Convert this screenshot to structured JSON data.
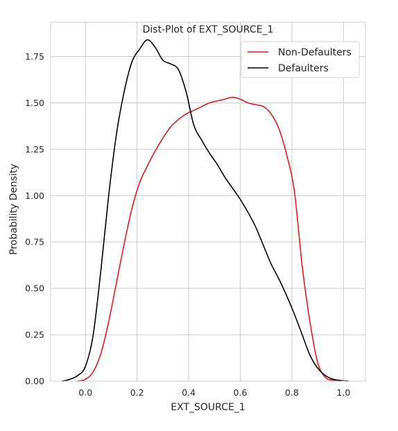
{
  "chart_data": {
    "type": "line",
    "title": "Dist-Plot of EXT_SOURCE_1",
    "xlabel": "EXT_SOURCE_1",
    "ylabel": "Probability Density",
    "xlim": [
      -0.135,
      1.085
    ],
    "ylim": [
      0,
      1.935
    ],
    "xticks": [
      0.0,
      0.2,
      0.4,
      0.6,
      0.8,
      1.0
    ],
    "xtick_labels": [
      "0.0",
      "0.2",
      "0.4",
      "0.6",
      "0.8",
      "1.0"
    ],
    "yticks": [
      0.0,
      0.25,
      0.5,
      0.75,
      1.0,
      1.25,
      1.5,
      1.75
    ],
    "ytick_labels": [
      "0.00",
      "0.25",
      "0.50",
      "0.75",
      "1.00",
      "1.25",
      "1.50",
      "1.75"
    ],
    "grid": true,
    "legend": "top-right",
    "series": [
      {
        "name": "Non-Defaulters",
        "color": "#e41a1c",
        "x": [
          -0.03,
          0.0,
          0.03,
          0.06,
          0.09,
          0.12,
          0.15,
          0.18,
          0.21,
          0.24,
          0.27,
          0.3,
          0.33,
          0.36,
          0.39,
          0.42,
          0.45,
          0.48,
          0.51,
          0.54,
          0.57,
          0.6,
          0.63,
          0.66,
          0.69,
          0.72,
          0.75,
          0.78,
          0.81,
          0.84,
          0.87,
          0.9,
          0.93,
          0.96,
          0.99
        ],
        "values": [
          0.0,
          0.01,
          0.05,
          0.15,
          0.32,
          0.53,
          0.74,
          0.93,
          1.07,
          1.16,
          1.24,
          1.31,
          1.37,
          1.41,
          1.44,
          1.46,
          1.48,
          1.5,
          1.51,
          1.52,
          1.53,
          1.52,
          1.5,
          1.49,
          1.48,
          1.44,
          1.36,
          1.22,
          1.02,
          0.62,
          0.32,
          0.1,
          0.02,
          0.005,
          0.0
        ]
      },
      {
        "name": "Defaulters",
        "color": "#000000",
        "x": [
          -0.09,
          -0.06,
          -0.03,
          0.0,
          0.03,
          0.06,
          0.09,
          0.12,
          0.15,
          0.18,
          0.21,
          0.24,
          0.27,
          0.3,
          0.33,
          0.36,
          0.39,
          0.42,
          0.45,
          0.48,
          0.51,
          0.54,
          0.57,
          0.6,
          0.63,
          0.66,
          0.69,
          0.72,
          0.75,
          0.78,
          0.81,
          0.84,
          0.87,
          0.9,
          0.93,
          0.96,
          0.99,
          1.02
        ],
        "values": [
          0.0,
          0.01,
          0.03,
          0.08,
          0.25,
          0.6,
          1.0,
          1.33,
          1.56,
          1.72,
          1.79,
          1.84,
          1.8,
          1.73,
          1.71,
          1.68,
          1.56,
          1.38,
          1.3,
          1.23,
          1.17,
          1.1,
          1.04,
          0.98,
          0.91,
          0.83,
          0.73,
          0.63,
          0.55,
          0.46,
          0.36,
          0.25,
          0.14,
          0.07,
          0.03,
          0.01,
          0.003,
          0.0
        ]
      }
    ]
  }
}
